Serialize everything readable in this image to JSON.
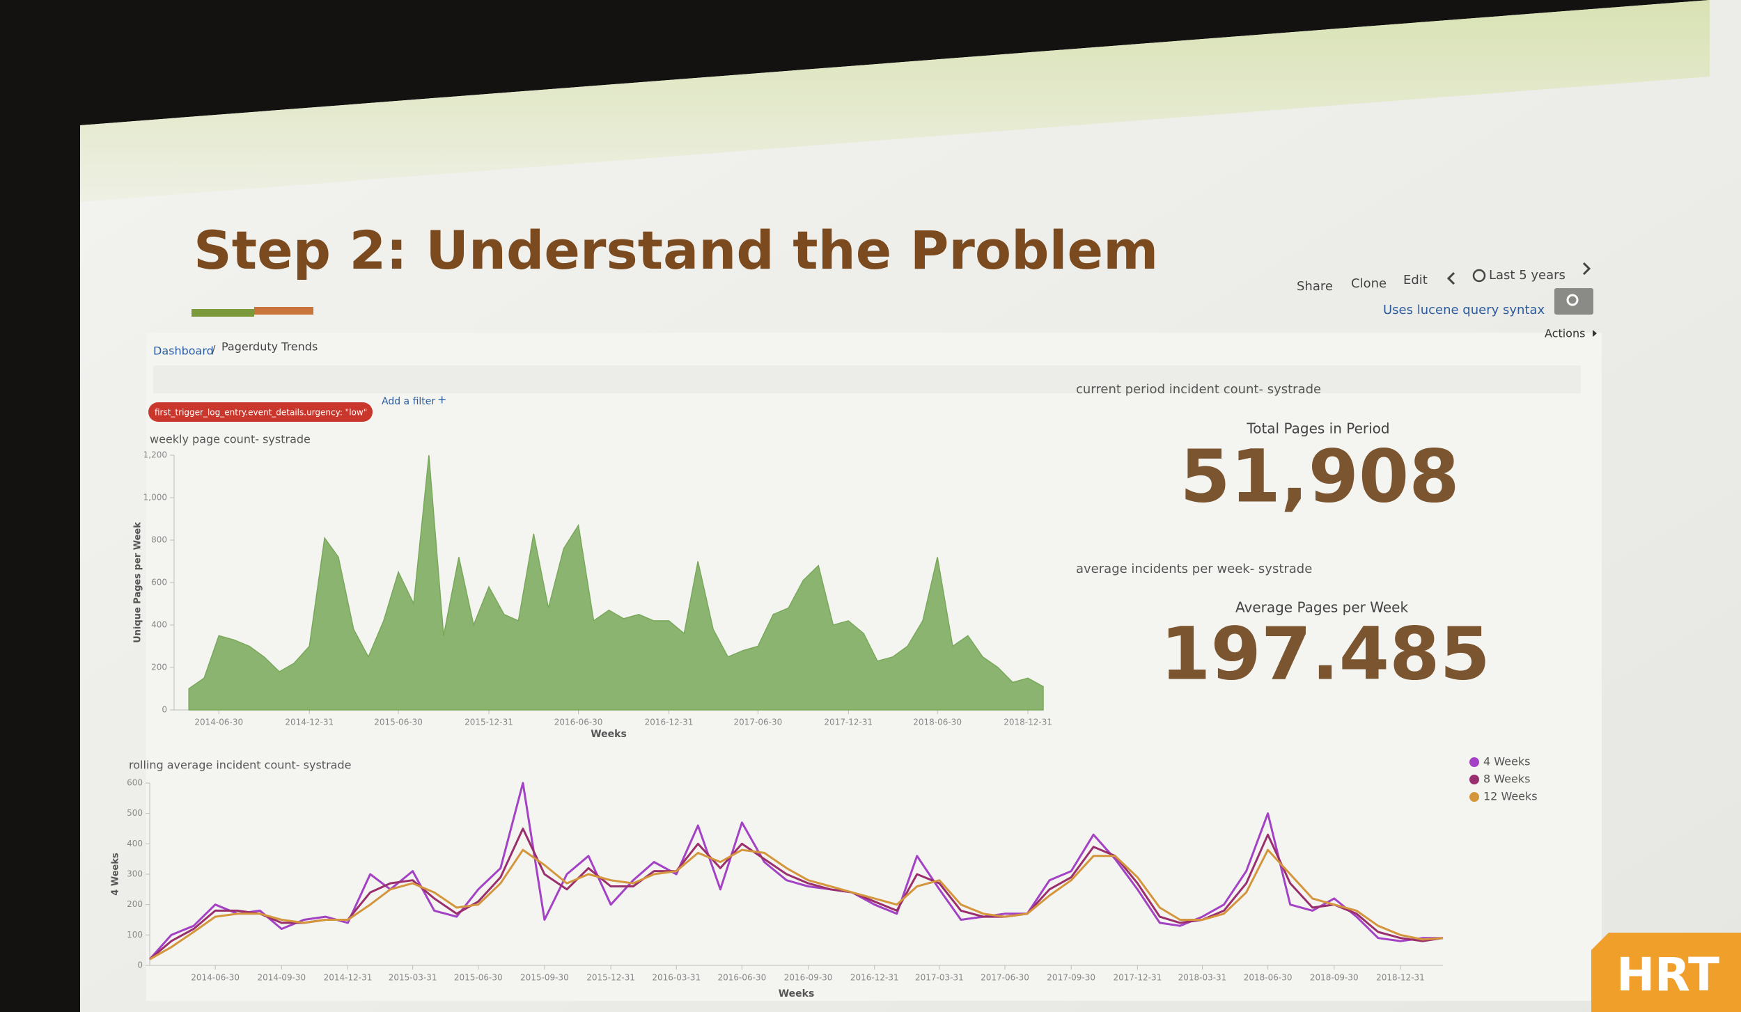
{
  "slide": {
    "title": "Step 2: Understand the Problem"
  },
  "toolbar": {
    "share": "Share",
    "clone": "Clone",
    "edit": "Edit",
    "time_range": "Last 5 years",
    "search_hint": "Uses lucene query syntax",
    "actions": "Actions"
  },
  "breadcrumb": [
    "Dashboard",
    "Pagerduty Trends"
  ],
  "filter": {
    "pill": "first_trigger_log_entry.event_details.urgency: \"low\"",
    "add": "Add a filter"
  },
  "metrics": [
    {
      "panel_title": "current period incident count- systrade",
      "label": "Total Pages in Period",
      "value": "51,908"
    },
    {
      "panel_title": "average incidents per week- systrade",
      "label": "Average Pages per Week",
      "value": "197.485"
    }
  ],
  "logo": "HRT",
  "chart_data": [
    {
      "type": "area",
      "title": "weekly page count- systrade",
      "xlabel": "Weeks",
      "ylabel": "Unique Pages per Week",
      "color": "#79a85a",
      "grid": false,
      "x": [
        "2014-04-30",
        "2014-05-31",
        "2014-06-30",
        "2014-07-31",
        "2014-08-31",
        "2014-09-30",
        "2014-10-31",
        "2014-11-30",
        "2014-12-31",
        "2015-01-31",
        "2015-02-28",
        "2015-03-31",
        "2015-04-30",
        "2015-05-31",
        "2015-06-30",
        "2015-07-31",
        "2015-08-31",
        "2015-09-30",
        "2015-10-31",
        "2015-11-30",
        "2015-12-31",
        "2016-01-31",
        "2016-02-29",
        "2016-03-31",
        "2016-04-30",
        "2016-05-31",
        "2016-06-30",
        "2016-07-31",
        "2016-08-31",
        "2016-09-30",
        "2016-10-31",
        "2016-11-30",
        "2016-12-31",
        "2017-01-31",
        "2017-02-28",
        "2017-03-31",
        "2017-04-30",
        "2017-05-31",
        "2017-06-30",
        "2017-07-31",
        "2017-08-31",
        "2017-09-30",
        "2017-10-31",
        "2017-11-30",
        "2017-12-31",
        "2018-01-31",
        "2018-02-28",
        "2018-03-31",
        "2018-04-30",
        "2018-05-31",
        "2018-06-30",
        "2018-07-31",
        "2018-08-31",
        "2018-09-30",
        "2018-10-31",
        "2018-11-30",
        "2018-12-31",
        "2019-01-31"
      ],
      "values": [
        100,
        150,
        350,
        330,
        300,
        250,
        180,
        220,
        300,
        810,
        720,
        380,
        250,
        420,
        650,
        500,
        1200,
        350,
        720,
        400,
        580,
        450,
        420,
        830,
        480,
        760,
        870,
        420,
        470,
        430,
        450,
        420,
        420,
        360,
        700,
        380,
        250,
        280,
        300,
        450,
        480,
        610,
        680,
        400,
        420,
        360,
        230,
        250,
        300,
        420,
        720,
        300,
        350,
        250,
        200,
        130,
        150,
        110
      ],
      "xlim": [
        "2014-03-31",
        "2019-01-31"
      ],
      "xticks": [
        "2014-06-30",
        "2014-12-31",
        "2015-06-30",
        "2015-12-31",
        "2016-06-30",
        "2016-12-31",
        "2017-06-30",
        "2017-12-31",
        "2018-06-30",
        "2018-12-31"
      ],
      "ylim": [
        0,
        1200
      ],
      "yticks": [
        0,
        200,
        400,
        600,
        800,
        {
          "value": 1000,
          "label": "1,000"
        },
        {
          "value": 1200,
          "label": "1,200"
        }
      ]
    },
    {
      "type": "line",
      "title": "rolling average incident count- systrade",
      "xlabel": "Weeks",
      "ylabel": "4 Weeks",
      "grid": false,
      "legend": "top-right",
      "x": [
        "2014-03-31",
        "2014-04-30",
        "2014-05-31",
        "2014-06-30",
        "2014-07-31",
        "2014-08-31",
        "2014-09-30",
        "2014-10-31",
        "2014-11-30",
        "2014-12-31",
        "2015-01-31",
        "2015-02-28",
        "2015-03-31",
        "2015-04-30",
        "2015-05-31",
        "2015-06-30",
        "2015-07-31",
        "2015-08-31",
        "2015-09-30",
        "2015-10-31",
        "2015-11-30",
        "2015-12-31",
        "2016-01-31",
        "2016-02-29",
        "2016-03-31",
        "2016-04-30",
        "2016-05-31",
        "2016-06-30",
        "2016-07-31",
        "2016-08-31",
        "2016-09-30",
        "2016-10-31",
        "2016-11-30",
        "2016-12-31",
        "2017-01-31",
        "2017-02-28",
        "2017-03-31",
        "2017-04-30",
        "2017-05-31",
        "2017-06-30",
        "2017-07-31",
        "2017-08-31",
        "2017-09-30",
        "2017-10-31",
        "2017-11-30",
        "2017-12-31",
        "2018-01-31",
        "2018-02-28",
        "2018-03-31",
        "2018-04-30",
        "2018-05-31",
        "2018-06-30",
        "2018-07-31",
        "2018-08-31",
        "2018-09-30",
        "2018-10-31",
        "2018-11-30",
        "2018-12-31",
        "2019-01-31",
        "2019-02-28"
      ],
      "series": [
        {
          "name": "4 Weeks",
          "color": "#a342c4",
          "values": [
            20,
            100,
            130,
            200,
            170,
            180,
            120,
            150,
            160,
            140,
            300,
            250,
            310,
            180,
            160,
            250,
            320,
            600,
            150,
            300,
            360,
            200,
            280,
            340,
            300,
            460,
            250,
            470,
            340,
            280,
            260,
            250,
            240,
            200,
            170,
            360,
            250,
            150,
            160,
            170,
            170,
            280,
            310,
            430,
            350,
            250,
            140,
            130,
            160,
            200,
            310,
            500,
            200,
            180,
            220,
            160,
            90,
            80,
            90,
            90
          ]
        },
        {
          "name": "8 Weeks",
          "color": "#9a2f6e",
          "values": [
            20,
            80,
            120,
            180,
            180,
            170,
            140,
            140,
            150,
            150,
            240,
            270,
            280,
            220,
            170,
            210,
            290,
            450,
            300,
            250,
            320,
            260,
            260,
            310,
            310,
            400,
            320,
            400,
            350,
            300,
            270,
            250,
            240,
            210,
            180,
            300,
            270,
            180,
            160,
            160,
            170,
            250,
            290,
            390,
            360,
            270,
            160,
            140,
            150,
            180,
            270,
            430,
            270,
            190,
            200,
            170,
            110,
            90,
            80,
            90
          ]
        },
        {
          "name": "12 Weeks",
          "color": "#d4963c",
          "values": [
            20,
            60,
            110,
            160,
            170,
            170,
            150,
            140,
            150,
            150,
            200,
            250,
            270,
            240,
            190,
            200,
            270,
            380,
            330,
            270,
            300,
            280,
            270,
            300,
            310,
            370,
            340,
            380,
            370,
            320,
            280,
            260,
            240,
            220,
            200,
            260,
            280,
            200,
            170,
            160,
            170,
            230,
            280,
            360,
            360,
            290,
            190,
            150,
            150,
            170,
            240,
            380,
            300,
            220,
            200,
            180,
            130,
            100,
            85,
            90
          ]
        }
      ],
      "xlim": [
        "2014-03-31",
        "2019-02-28"
      ],
      "xticks": [
        "2014-06-30",
        "2014-09-30",
        "2014-12-31",
        "2015-03-31",
        "2015-06-30",
        "2015-09-30",
        "2015-12-31",
        "2016-03-31",
        "2016-06-30",
        "2016-09-30",
        "2016-12-31",
        "2017-03-31",
        "2017-06-30",
        "2017-09-30",
        "2017-12-31",
        "2018-03-31",
        "2018-06-30",
        "2018-09-30",
        "2018-12-31"
      ],
      "ylim": [
        0,
        600
      ],
      "yticks": [
        0,
        100,
        200,
        300,
        400,
        500,
        600
      ]
    }
  ]
}
